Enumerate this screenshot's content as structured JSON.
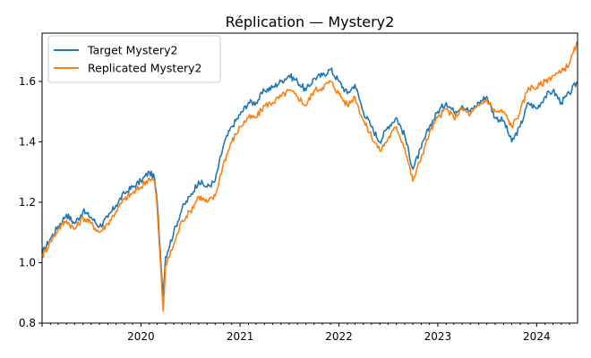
{
  "chart_data": {
    "type": "line",
    "title": "Réplication — Mystery2",
    "xlabel": "",
    "ylabel": "",
    "xlim": [
      "2019-01-01",
      "2024-05-31"
    ],
    "ylim": [
      0.8,
      1.76
    ],
    "x_ticks": [
      "2020",
      "2021",
      "2022",
      "2023",
      "2024"
    ],
    "y_ticks": [
      "0.8",
      "1.0",
      "1.2",
      "1.4",
      "1.6"
    ],
    "grid": false,
    "legend_position": "upper-left",
    "colors": {
      "target": "#1f77b4",
      "replicated": "#ff7f0e"
    },
    "x": [
      "2019-01-01",
      "2019-02-01",
      "2019-03-01",
      "2019-04-01",
      "2019-05-01",
      "2019-06-01",
      "2019-07-01",
      "2019-08-01",
      "2019-09-01",
      "2019-10-01",
      "2019-11-01",
      "2019-12-01",
      "2020-01-01",
      "2020-02-01",
      "2020-02-20",
      "2020-03-01",
      "2020-03-23",
      "2020-04-01",
      "2020-05-01",
      "2020-06-01",
      "2020-07-01",
      "2020-08-01",
      "2020-09-01",
      "2020-10-01",
      "2020-11-01",
      "2020-12-01",
      "2021-01-01",
      "2021-02-01",
      "2021-03-01",
      "2021-04-01",
      "2021-05-01",
      "2021-06-01",
      "2021-07-01",
      "2021-08-01",
      "2021-09-01",
      "2021-10-01",
      "2021-11-01",
      "2021-12-01",
      "2022-01-01",
      "2022-02-01",
      "2022-03-01",
      "2022-04-01",
      "2022-05-01",
      "2022-06-01",
      "2022-07-01",
      "2022-08-01",
      "2022-09-01",
      "2022-10-01",
      "2022-11-01",
      "2022-12-01",
      "2023-01-01",
      "2023-02-01",
      "2023-03-01",
      "2023-04-01",
      "2023-05-01",
      "2023-06-01",
      "2023-07-01",
      "2023-08-01",
      "2023-09-01",
      "2023-10-01",
      "2023-11-01",
      "2023-12-01",
      "2024-01-01",
      "2024-02-01",
      "2024-03-01",
      "2024-04-01",
      "2024-05-01",
      "2024-05-31"
    ],
    "series": [
      {
        "name": "Target Mystery2",
        "values": [
          1.03,
          1.08,
          1.12,
          1.16,
          1.13,
          1.17,
          1.15,
          1.12,
          1.15,
          1.19,
          1.23,
          1.25,
          1.27,
          1.3,
          1.28,
          1.2,
          0.89,
          1.02,
          1.1,
          1.18,
          1.22,
          1.27,
          1.25,
          1.27,
          1.39,
          1.45,
          1.49,
          1.53,
          1.53,
          1.57,
          1.58,
          1.6,
          1.62,
          1.6,
          1.57,
          1.61,
          1.62,
          1.64,
          1.6,
          1.56,
          1.59,
          1.5,
          1.45,
          1.4,
          1.45,
          1.48,
          1.42,
          1.31,
          1.38,
          1.45,
          1.5,
          1.53,
          1.5,
          1.52,
          1.5,
          1.53,
          1.55,
          1.48,
          1.47,
          1.4,
          1.45,
          1.53,
          1.51,
          1.55,
          1.57,
          1.53,
          1.56,
          1.6
        ]
      },
      {
        "name": "Replicated Mystery2",
        "values": [
          1.02,
          1.07,
          1.11,
          1.14,
          1.11,
          1.15,
          1.13,
          1.1,
          1.13,
          1.17,
          1.21,
          1.23,
          1.25,
          1.28,
          1.27,
          1.18,
          0.84,
          0.99,
          1.06,
          1.14,
          1.17,
          1.22,
          1.2,
          1.22,
          1.33,
          1.4,
          1.45,
          1.48,
          1.48,
          1.52,
          1.53,
          1.55,
          1.57,
          1.55,
          1.52,
          1.57,
          1.58,
          1.6,
          1.56,
          1.52,
          1.55,
          1.47,
          1.42,
          1.37,
          1.41,
          1.45,
          1.38,
          1.27,
          1.35,
          1.43,
          1.48,
          1.51,
          1.48,
          1.51,
          1.49,
          1.52,
          1.54,
          1.5,
          1.5,
          1.45,
          1.5,
          1.58,
          1.58,
          1.6,
          1.62,
          1.63,
          1.66,
          1.73
        ]
      }
    ]
  }
}
